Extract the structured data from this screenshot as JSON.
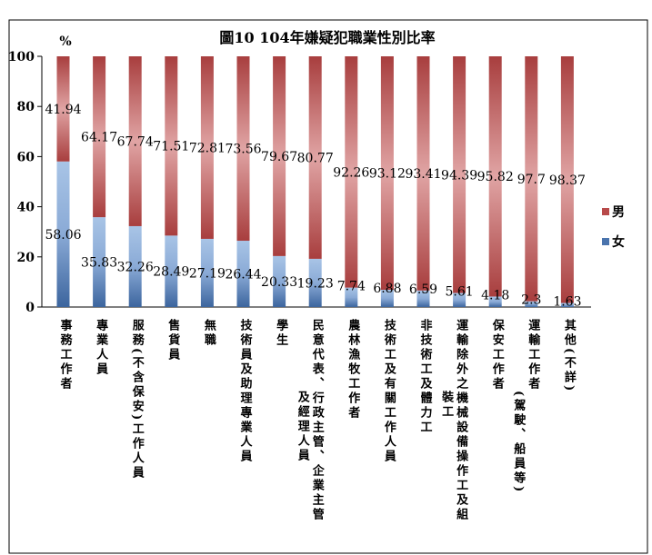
{
  "chart_data": {
    "type": "bar",
    "stacked": true,
    "title": "圖10 104年嫌疑犯職業性別比率",
    "ylabel": "%",
    "ylim": [
      0,
      100
    ],
    "yticks": [
      "0",
      "20",
      "40",
      "60",
      "80",
      "100"
    ],
    "categories": [
      "事務工作者",
      "專業人員",
      "服務(不含保安)工作人員",
      "售貨員",
      "無職",
      "技術員及助理專業人員",
      "學生",
      "民意代表、行政主管、企業主管|及經理人員",
      "農林漁牧工作者",
      "技術工及有關工作人員",
      "非技術工及體力工",
      "運輸除外之機械設備操作工及組|裝工",
      "保安工作者",
      "運輸工作者|(駕駛、船員等)",
      "其他(不詳)"
    ],
    "series": [
      {
        "name": "女",
        "color": "#4a74ad",
        "values": [
          58.06,
          35.83,
          32.26,
          28.49,
          27.19,
          26.44,
          20.33,
          19.23,
          7.74,
          6.88,
          6.59,
          5.61,
          4.18,
          2.3,
          1.63
        ],
        "labels": [
          "58.06",
          "35.83",
          "32.26",
          "28.49",
          "27.19",
          "26.44",
          "20.33",
          "19.23",
          "7.74",
          "6.88",
          "6.59",
          "5.61",
          "4.18",
          "2.3",
          "1.63"
        ]
      },
      {
        "name": "男",
        "color": "#b84a4a",
        "values": [
          41.94,
          64.17,
          67.74,
          71.51,
          72.81,
          73.56,
          79.67,
          80.77,
          92.26,
          93.12,
          93.41,
          94.39,
          95.82,
          97.7,
          98.37
        ],
        "labels": [
          "41.94",
          "64.17",
          "67.74",
          "71.51",
          "72.81",
          "73.56",
          "79.67",
          "80.77",
          "92.26",
          "93.12",
          "93.41",
          "94.39",
          "95.82",
          "97.7",
          "98.37"
        ]
      }
    ],
    "legend": {
      "placement": "right",
      "order": [
        "男",
        "女"
      ]
    },
    "grid": false
  }
}
